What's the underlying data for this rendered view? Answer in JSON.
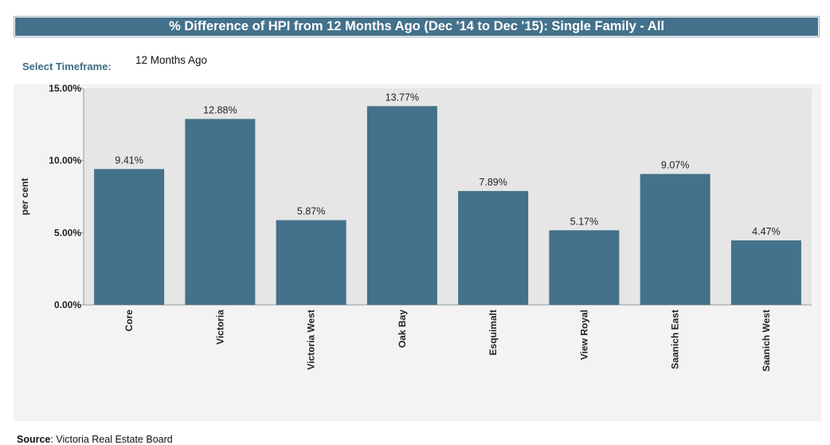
{
  "header": {
    "title": "% Difference of HPI from 12 Months Ago (Dec '14 to Dec '15): Single Family - All"
  },
  "timeframe": {
    "label": "Select Timeframe:",
    "value": "12 Months Ago"
  },
  "source": {
    "label": "Source",
    "text": ": Victoria Real Estate Board"
  },
  "colors": {
    "bar": "#44718b",
    "plot_bg": "#e6e6e6",
    "panel_bg": "#f3f3f3"
  },
  "chart_data": {
    "type": "bar",
    "ylabel": "per cent",
    "ylim": [
      0,
      15
    ],
    "yticks": [
      0,
      5,
      10,
      15
    ],
    "ytick_labels": [
      "0.00%",
      "5.00%",
      "10.00%",
      "15.00%"
    ],
    "grid": false,
    "categories": [
      "Core",
      "Victoria",
      "Victoria West",
      "Oak Bay",
      "Esquimalt",
      "View Royal",
      "Saanich East",
      "Saanich West"
    ],
    "values": [
      9.41,
      12.88,
      5.87,
      13.77,
      7.89,
      5.17,
      9.07,
      4.47
    ],
    "value_labels": [
      "9.41%",
      "12.88%",
      "5.87%",
      "13.77%",
      "7.89%",
      "5.17%",
      "9.07%",
      "4.47%"
    ]
  }
}
